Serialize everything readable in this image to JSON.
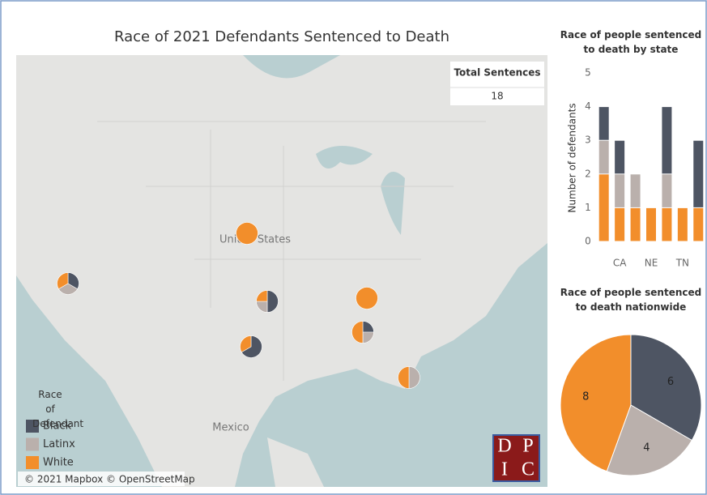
{
  "chart_data": [
    {
      "type": "map",
      "title": "Race of 2021 Defendants Sentenced to Death",
      "labels": [
        "United States",
        "Mexico"
      ],
      "attribution": "© 2021 Mapbox © OpenStreetMap",
      "legend_title": "Race of Defendant",
      "total_label": "Total Sentences",
      "total": 18,
      "logo": [
        "D",
        "P",
        "I",
        "C"
      ]
    },
    {
      "type": "bar",
      "stacked": true,
      "title": "Race of people sentenced to death by state",
      "ylabel": "Number of defendants",
      "categories": [
        null,
        "CA",
        null,
        "NE",
        null,
        "TN",
        null
      ],
      "series": [
        {
          "name": "Black",
          "color": "#4e5563",
          "values": [
            1,
            1,
            0,
            0,
            2,
            0,
            2
          ]
        },
        {
          "name": "Latinx",
          "color": "#bab0ac",
          "values": [
            1,
            1,
            1,
            0,
            1,
            0,
            0
          ]
        },
        {
          "name": "White",
          "color": "#f28e2b",
          "values": [
            2,
            1,
            1,
            1,
            1,
            1,
            1
          ]
        }
      ],
      "ylim": [
        0,
        5
      ],
      "yticks": [
        0,
        1,
        2,
        3,
        4,
        5
      ]
    },
    {
      "type": "pie",
      "title": "Race of people sentenced to death nationwide",
      "categories": [
        "Black",
        "Latinx",
        "White"
      ],
      "values": [
        6,
        4,
        8
      ],
      "colors": [
        "#4e5563",
        "#bab0ac",
        "#f28e2b"
      ]
    }
  ]
}
